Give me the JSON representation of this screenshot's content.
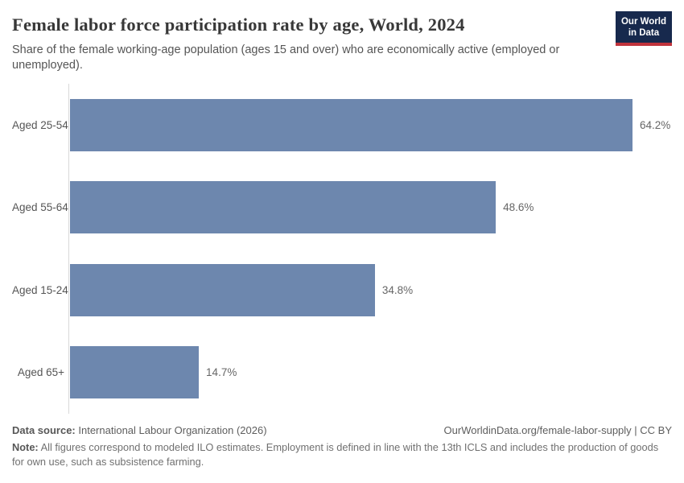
{
  "header": {
    "title": "Female labor force participation rate by age, World, 2024",
    "subtitle": "Share of the female working-age population (ages 15 and over) who are economically active (employed or unemployed).",
    "logo": {
      "line1": "Our World",
      "line2": "in Data"
    }
  },
  "chart_data": {
    "type": "bar",
    "orientation": "horizontal",
    "title": "Female labor force participation rate by age, World, 2024",
    "categories": [
      "Aged 25-54",
      "Aged 55-64",
      "Aged 15-24",
      "Aged 65+"
    ],
    "values": [
      64.2,
      48.6,
      34.8,
      14.7
    ],
    "value_labels": [
      "64.2%",
      "48.6%",
      "34.8%",
      "14.7%"
    ],
    "unit": "%",
    "xmax": 64.2,
    "grid": false,
    "legend": "none",
    "bar_color": "#6d87ae"
  },
  "footer": {
    "data_source_label": "Data source:",
    "data_source_value": "International Labour Organization (2026)",
    "link_text": "OurWorldinData.org/female-labor-supply | CC BY",
    "note_label": "Note:",
    "note_text": "All figures correspond to modeled ILO estimates. Employment is defined in line with the 13th ICLS and includes the production of goods for own use, such as subsistence farming."
  },
  "colors": {
    "bar": "#6d87ae",
    "axis_line": "#d9d9d9",
    "logo_bg": "#17294d",
    "logo_stripe": "#c0333c",
    "title_text": "#383838",
    "body_text": "#555555"
  }
}
